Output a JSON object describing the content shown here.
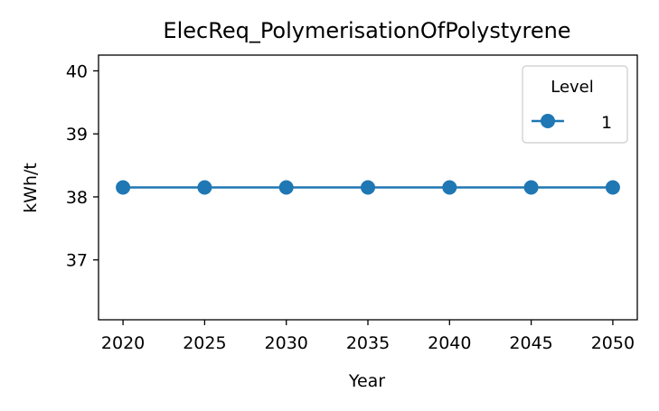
{
  "chart_data": {
    "type": "line",
    "title": "ElecReq_PolymerisationOfPolystyrene",
    "xlabel": "Year",
    "ylabel": "kWh/t",
    "x": [
      2020,
      2025,
      2030,
      2035,
      2040,
      2045,
      2050
    ],
    "xticks": [
      "2020",
      "2025",
      "2030",
      "2035",
      "2040",
      "2045",
      "2050"
    ],
    "yticks": [
      "37",
      "38",
      "39",
      "40"
    ],
    "xlim": [
      2018.5,
      2051.5
    ],
    "ylim": [
      36.05,
      40.25
    ],
    "grid": false,
    "legend": {
      "title": "Level",
      "placement": "top-right"
    },
    "series": [
      {
        "name": "1",
        "color": "#1f77b4",
        "marker": "circle",
        "values": [
          38.15,
          38.15,
          38.15,
          38.15,
          38.15,
          38.15,
          38.15
        ]
      }
    ]
  }
}
